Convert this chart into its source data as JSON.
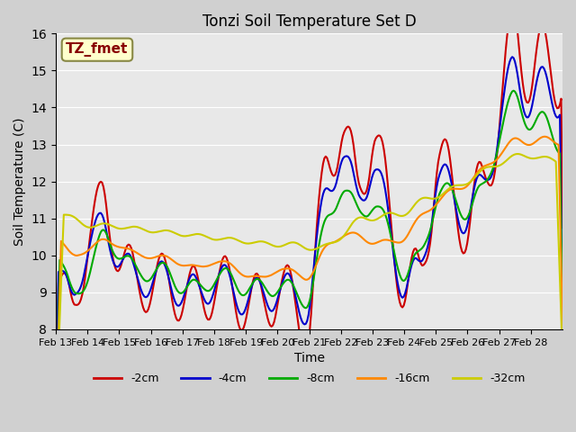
{
  "title": "Tonzi Soil Temperature Set D",
  "xlabel": "Time",
  "ylabel": "Soil Temperature (C)",
  "annotation": "TZ_fmet",
  "ylim": [
    8.0,
    16.0
  ],
  "yticks": [
    8.0,
    9.0,
    10.0,
    11.0,
    12.0,
    13.0,
    14.0,
    15.0,
    16.0
  ],
  "xtick_labels": [
    "Feb 13",
    "Feb 14",
    "Feb 15",
    "Feb 16",
    "Feb 17",
    "Feb 18",
    "Feb 19",
    "Feb 20",
    "Feb 21",
    "Feb 22",
    "Feb 23",
    "Feb 24",
    "Feb 25",
    "Feb 26",
    "Feb 27",
    "Feb 28"
  ],
  "legend_labels": [
    "-2cm",
    "-4cm",
    "-8cm",
    "-16cm",
    "-32cm"
  ],
  "legend_colors": [
    "#cc0000",
    "#0000cc",
    "#00aa00",
    "#ff8800",
    "#cccc00"
  ],
  "line_widths": [
    1.5,
    1.5,
    1.5,
    1.5,
    1.5
  ],
  "bg_color": "#e8e8e8",
  "title_color": "#000000",
  "annotation_bg": "#ffffcc",
  "annotation_border": "#888844",
  "annotation_text_color": "#880000"
}
